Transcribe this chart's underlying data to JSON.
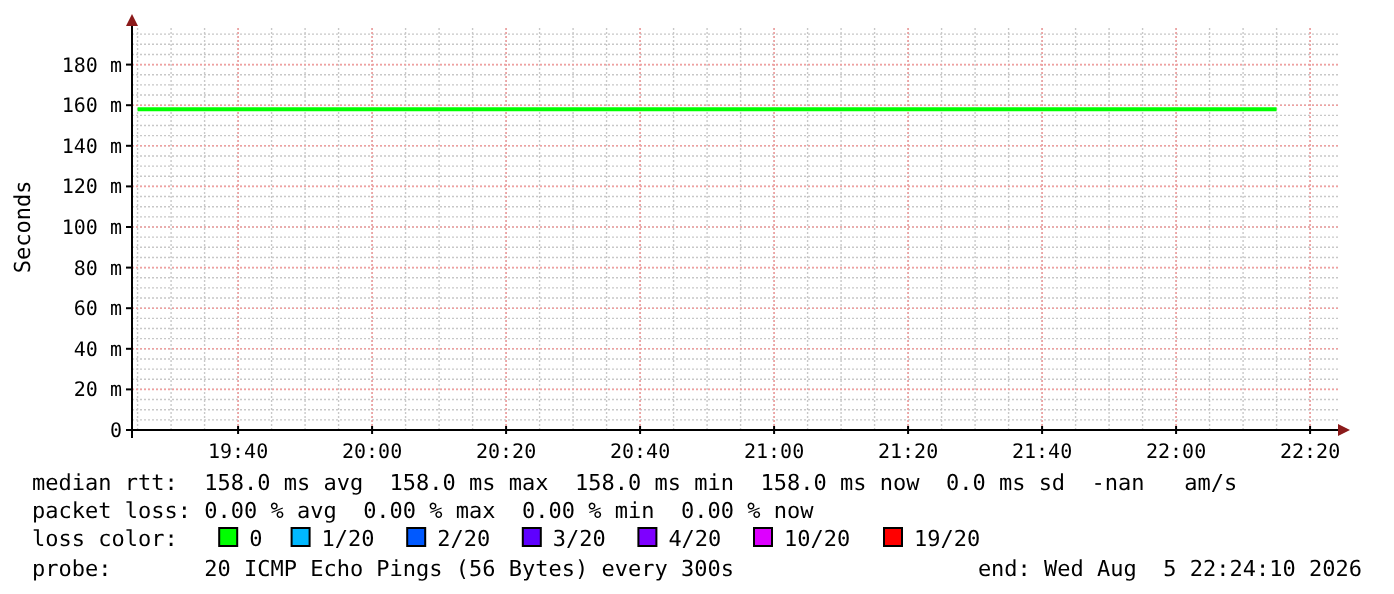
{
  "chart_data": {
    "type": "line",
    "ylabel": "Seconds",
    "legend_title": "loss color:",
    "legend": "bottom",
    "grid": true,
    "xlim": [
      "2026-08-05T19:24:10",
      "2026-08-05T22:24:10"
    ],
    "xticks": [
      {
        "value": "2026-08-05T19:40",
        "label": "19:40"
      },
      {
        "value": "2026-08-05T20:00",
        "label": "20:00"
      },
      {
        "value": "2026-08-05T20:20",
        "label": "20:20"
      },
      {
        "value": "2026-08-05T20:40",
        "label": "20:40"
      },
      {
        "value": "2026-08-05T21:00",
        "label": "21:00"
      },
      {
        "value": "2026-08-05T21:20",
        "label": "21:20"
      },
      {
        "value": "2026-08-05T21:40",
        "label": "21:40"
      },
      {
        "value": "2026-08-05T22:00",
        "label": "22:00"
      },
      {
        "value": "2026-08-05T22:20",
        "label": "22:20"
      }
    ],
    "ylim": [
      0,
      200
    ],
    "yticks": [
      0,
      {
        "value": 20,
        "label": "20 m"
      },
      {
        "value": 40,
        "label": "40 m"
      },
      {
        "value": 60,
        "label": "60 m"
      },
      {
        "value": 80,
        "label": "80 m"
      },
      {
        "value": 100,
        "label": "100 m"
      },
      {
        "value": 120,
        "label": "120 m"
      },
      {
        "value": 140,
        "label": "140 m"
      },
      {
        "value": 160,
        "label": "160 m"
      },
      {
        "value": 180,
        "label": "180 m"
      }
    ],
    "x": [
      "2026-08-05T19:25",
      "2026-08-05T20:00",
      "2026-08-05T20:40",
      "2026-08-05T21:20",
      "2026-08-05T22:00",
      "2026-08-05T22:15"
    ],
    "series": [
      {
        "name": "0",
        "color": "#00ff00",
        "values": [
          158,
          158,
          158,
          158,
          158,
          158
        ]
      },
      {
        "name": "1/20",
        "color": "#00b8ff",
        "values": [
          null,
          null,
          null,
          null,
          null,
          null
        ]
      },
      {
        "name": "2/20",
        "color": "#0059ff",
        "values": [
          null,
          null,
          null,
          null,
          null,
          null
        ]
      },
      {
        "name": "3/20",
        "color": "#5e00ff",
        "values": [
          null,
          null,
          null,
          null,
          null,
          null
        ]
      },
      {
        "name": "4/20",
        "color": "#7e00ff",
        "values": [
          null,
          null,
          null,
          null,
          null,
          null
        ]
      },
      {
        "name": "10/20",
        "color": "#dd00ff",
        "values": [
          null,
          null,
          null,
          null,
          null,
          null
        ]
      },
      {
        "name": "19/20",
        "color": "#ff0000",
        "values": [
          null,
          null,
          null,
          null,
          null,
          null
        ]
      }
    ],
    "annotations": [
      "median rtt:  158.0 ms avg  158.0 ms max  158.0 ms min  158.0 ms now  0.0 ms sd  -nan   am/s",
      "packet loss: 0.00 % avg  0.00 % max  0.00 % min  0.00 % now",
      "probe:       20 ICMP Echo Pings (56 Bytes) every 300s",
      "end: Wed Aug  5 22:24:10 2026"
    ]
  }
}
